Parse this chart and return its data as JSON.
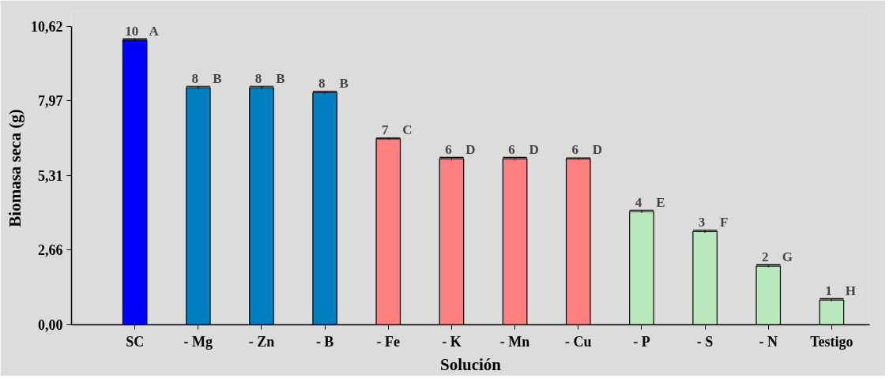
{
  "chart_data": {
    "type": "bar",
    "xlabel": "Solución",
    "ylabel": "Biomasa seca (g)",
    "categories": [
      "SC",
      "- Mg",
      "- Zn",
      "- B",
      "- Fe",
      "- K",
      "- Mn",
      "- Cu",
      "- P",
      "- S",
      "- N",
      "Testigo"
    ],
    "values": [
      10.13,
      8.44,
      8.44,
      8.26,
      6.62,
      5.91,
      5.91,
      5.91,
      4.03,
      3.32,
      2.09,
      0.88
    ],
    "errors": [
      0.05,
      0.05,
      0.05,
      0.05,
      0.03,
      0.05,
      0.05,
      0.03,
      0.05,
      0.05,
      0.05,
      0.05
    ],
    "colors": [
      "#0000ff",
      "#007fc0",
      "#007fc0",
      "#007fc0",
      "#ff7f7f",
      "#ff7f7f",
      "#ff7f7f",
      "#ff7f7f",
      "#b8e8bc",
      "#b8e8bc",
      "#b8e8bc",
      "#b8e8bc"
    ],
    "value_labels": [
      "10",
      "8",
      "8",
      "8",
      "7",
      "6",
      "6",
      "6",
      "4",
      "3",
      "2",
      "1"
    ],
    "annotations": [
      {
        "text": "A",
        "x": "SC",
        "y": 10.13
      },
      {
        "text": "B",
        "x": "- Mg",
        "y": 8.44
      },
      {
        "text": "B",
        "x": "- Zn",
        "y": 8.44
      },
      {
        "text": "B",
        "x": "- B",
        "y": 8.26
      },
      {
        "text": "C",
        "x": "- Fe",
        "y": 6.62
      },
      {
        "text": "D",
        "x": "- K",
        "y": 5.91
      },
      {
        "text": "D",
        "x": "- Mn",
        "y": 5.91
      },
      {
        "text": "D",
        "x": "- Cu",
        "y": 5.91
      },
      {
        "text": "E",
        "x": "- P",
        "y": 4.03
      },
      {
        "text": "F",
        "x": "- S",
        "y": 3.32
      },
      {
        "text": "G",
        "x": "- N",
        "y": 2.09
      },
      {
        "text": "H",
        "x": "Testigo",
        "y": 0.88
      }
    ],
    "ylim": [
      0,
      10.62
    ],
    "yticks": [
      {
        "value": 0,
        "label": "0,00"
      },
      {
        "value": 2.66,
        "label": "2,66"
      },
      {
        "value": 5.31,
        "label": "5,31"
      },
      {
        "value": 7.97,
        "label": "7,97"
      },
      {
        "value": 10.62,
        "label": "10,62"
      }
    ],
    "grid": false
  }
}
